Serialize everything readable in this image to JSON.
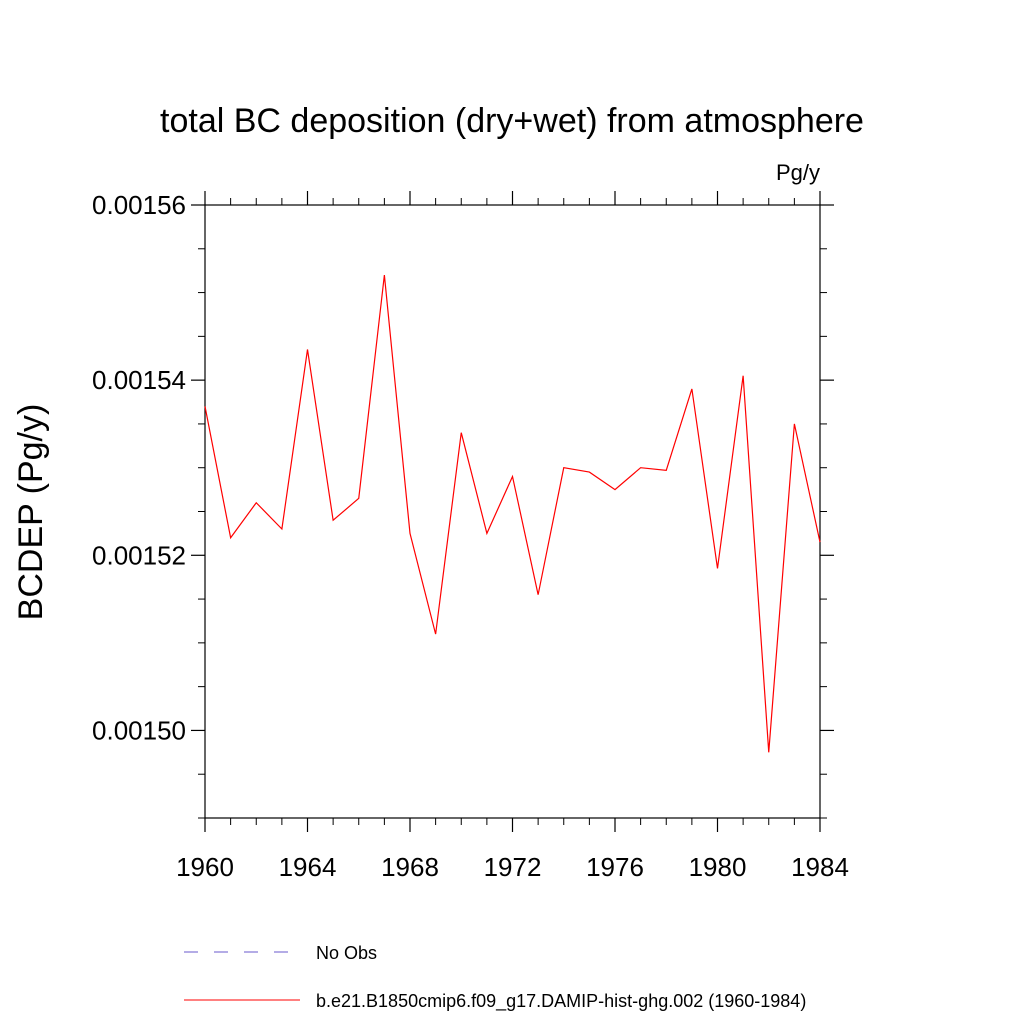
{
  "chart_data": {
    "type": "line",
    "title": "total BC deposition (dry+wet) from atmosphere",
    "units_label": "Pg/y",
    "ylabel": "BCDEP  (Pg/y)",
    "xlabel": "",
    "xlim": [
      1960,
      1984
    ],
    "ylim": [
      0.00149,
      0.00156
    ],
    "x_ticks": [
      1960,
      1964,
      1968,
      1972,
      1976,
      1980,
      1984
    ],
    "y_ticks": [
      0.0015,
      0.00152,
      0.00154,
      0.00156
    ],
    "x_tick_labels": [
      "1960",
      "1964",
      "1968",
      "1972",
      "1976",
      "1980",
      "1984"
    ],
    "y_tick_labels": [
      "0.00150",
      "0.00152",
      "0.00154",
      "0.00156"
    ],
    "x": [
      1960,
      1961,
      1962,
      1963,
      1964,
      1965,
      1966,
      1967,
      1968,
      1969,
      1970,
      1971,
      1972,
      1973,
      1974,
      1975,
      1976,
      1977,
      1978,
      1979,
      1980,
      1981,
      1982,
      1983,
      1984
    ],
    "series": [
      {
        "name": "b.e21.B1850cmip6.f09_g17.DAMIP-hist-ghg.002 (1960-1984)",
        "color": "#ff0000",
        "dash": "solid",
        "values": [
          0.001537,
          0.001522,
          0.001526,
          0.001523,
          0.0015435,
          0.001524,
          0.0015265,
          0.001552,
          0.0015225,
          0.001511,
          0.001534,
          0.0015225,
          0.001529,
          0.0015155,
          0.00153,
          0.0015295,
          0.0015275,
          0.00153,
          0.0015297,
          0.001539,
          0.0015185,
          0.0015405,
          0.0014975,
          0.001535,
          0.0015215
        ]
      }
    ],
    "legend": [
      {
        "label": "No Obs",
        "color": "#6a5acd",
        "dash": "dashed"
      },
      {
        "label": "b.e21.B1850cmip6.f09_g17.DAMIP-hist-ghg.002 (1960-1984)",
        "color": "#ff0000",
        "dash": "solid"
      }
    ],
    "legend_placement": "bottom",
    "grid": false
  }
}
